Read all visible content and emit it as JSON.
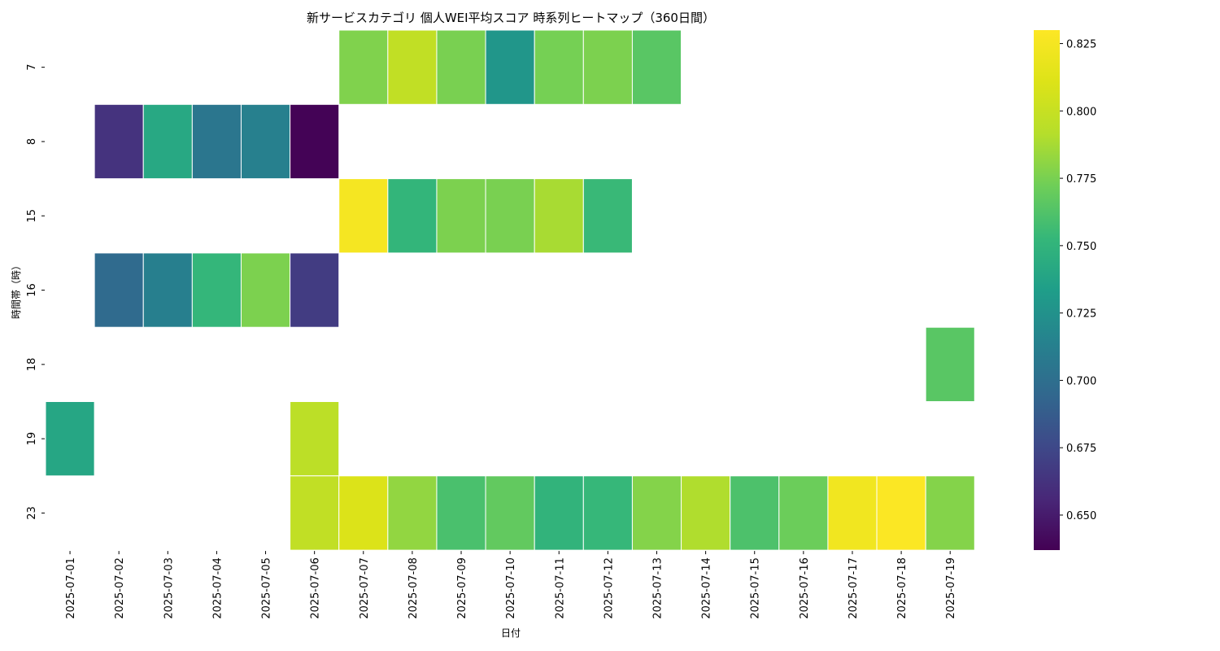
{
  "chart_data": {
    "type": "heatmap",
    "title": "新サービスカテゴリ 個人WEI平均スコア 時系列ヒートマップ（360日間）",
    "xlabel": "日付",
    "ylabel": "時間帯（時）",
    "x": [
      "2025-07-01",
      "2025-07-02",
      "2025-07-03",
      "2025-07-04",
      "2025-07-05",
      "2025-07-06",
      "2025-07-07",
      "2025-07-08",
      "2025-07-09",
      "2025-07-10",
      "2025-07-11",
      "2025-07-12",
      "2025-07-13",
      "2025-07-14",
      "2025-07-15",
      "2025-07-16",
      "2025-07-17",
      "2025-07-18",
      "2025-07-19"
    ],
    "y": [
      "7",
      "8",
      "15",
      "16",
      "18",
      "19",
      "23"
    ],
    "values": [
      [
        null,
        null,
        null,
        null,
        null,
        null,
        0.777,
        0.797,
        0.775,
        0.728,
        0.774,
        0.776,
        0.765,
        null,
        null,
        null,
        null,
        null,
        null
      ],
      [
        null,
        0.663,
        0.741,
        0.705,
        0.713,
        0.638,
        null,
        null,
        null,
        null,
        null,
        null,
        null,
        null,
        null,
        null,
        null,
        null,
        null
      ],
      [
        null,
        null,
        null,
        null,
        null,
        null,
        0.825,
        0.751,
        0.776,
        0.775,
        0.788,
        0.754,
        null,
        null,
        null,
        null,
        null,
        null,
        null
      ],
      [
        null,
        0.697,
        0.712,
        0.752,
        0.776,
        0.668,
        null,
        null,
        null,
        null,
        null,
        null,
        null,
        null,
        null,
        null,
        null,
        null,
        null
      ],
      [
        null,
        null,
        null,
        null,
        null,
        null,
        null,
        null,
        null,
        null,
        null,
        null,
        null,
        null,
        null,
        null,
        null,
        null,
        0.765
      ],
      [
        0.74,
        null,
        null,
        null,
        null,
        0.795,
        null,
        null,
        null,
        null,
        null,
        null,
        null,
        null,
        null,
        null,
        null,
        null,
        null
      ],
      [
        null,
        null,
        null,
        null,
        null,
        0.797,
        0.81,
        0.782,
        0.76,
        0.768,
        0.75,
        0.753,
        0.778,
        0.79,
        0.761,
        0.771,
        0.823,
        0.829,
        0.778
      ]
    ],
    "colorbar": {
      "colormap": "viridis",
      "vmin": 0.637,
      "vmax": 0.83,
      "ticks": [
        0.65,
        0.675,
        0.7,
        0.725,
        0.75,
        0.775,
        0.8,
        0.825
      ],
      "tick_labels": [
        "0.650",
        "0.675",
        "0.700",
        "0.725",
        "0.750",
        "0.775",
        "0.800",
        "0.825"
      ]
    }
  }
}
